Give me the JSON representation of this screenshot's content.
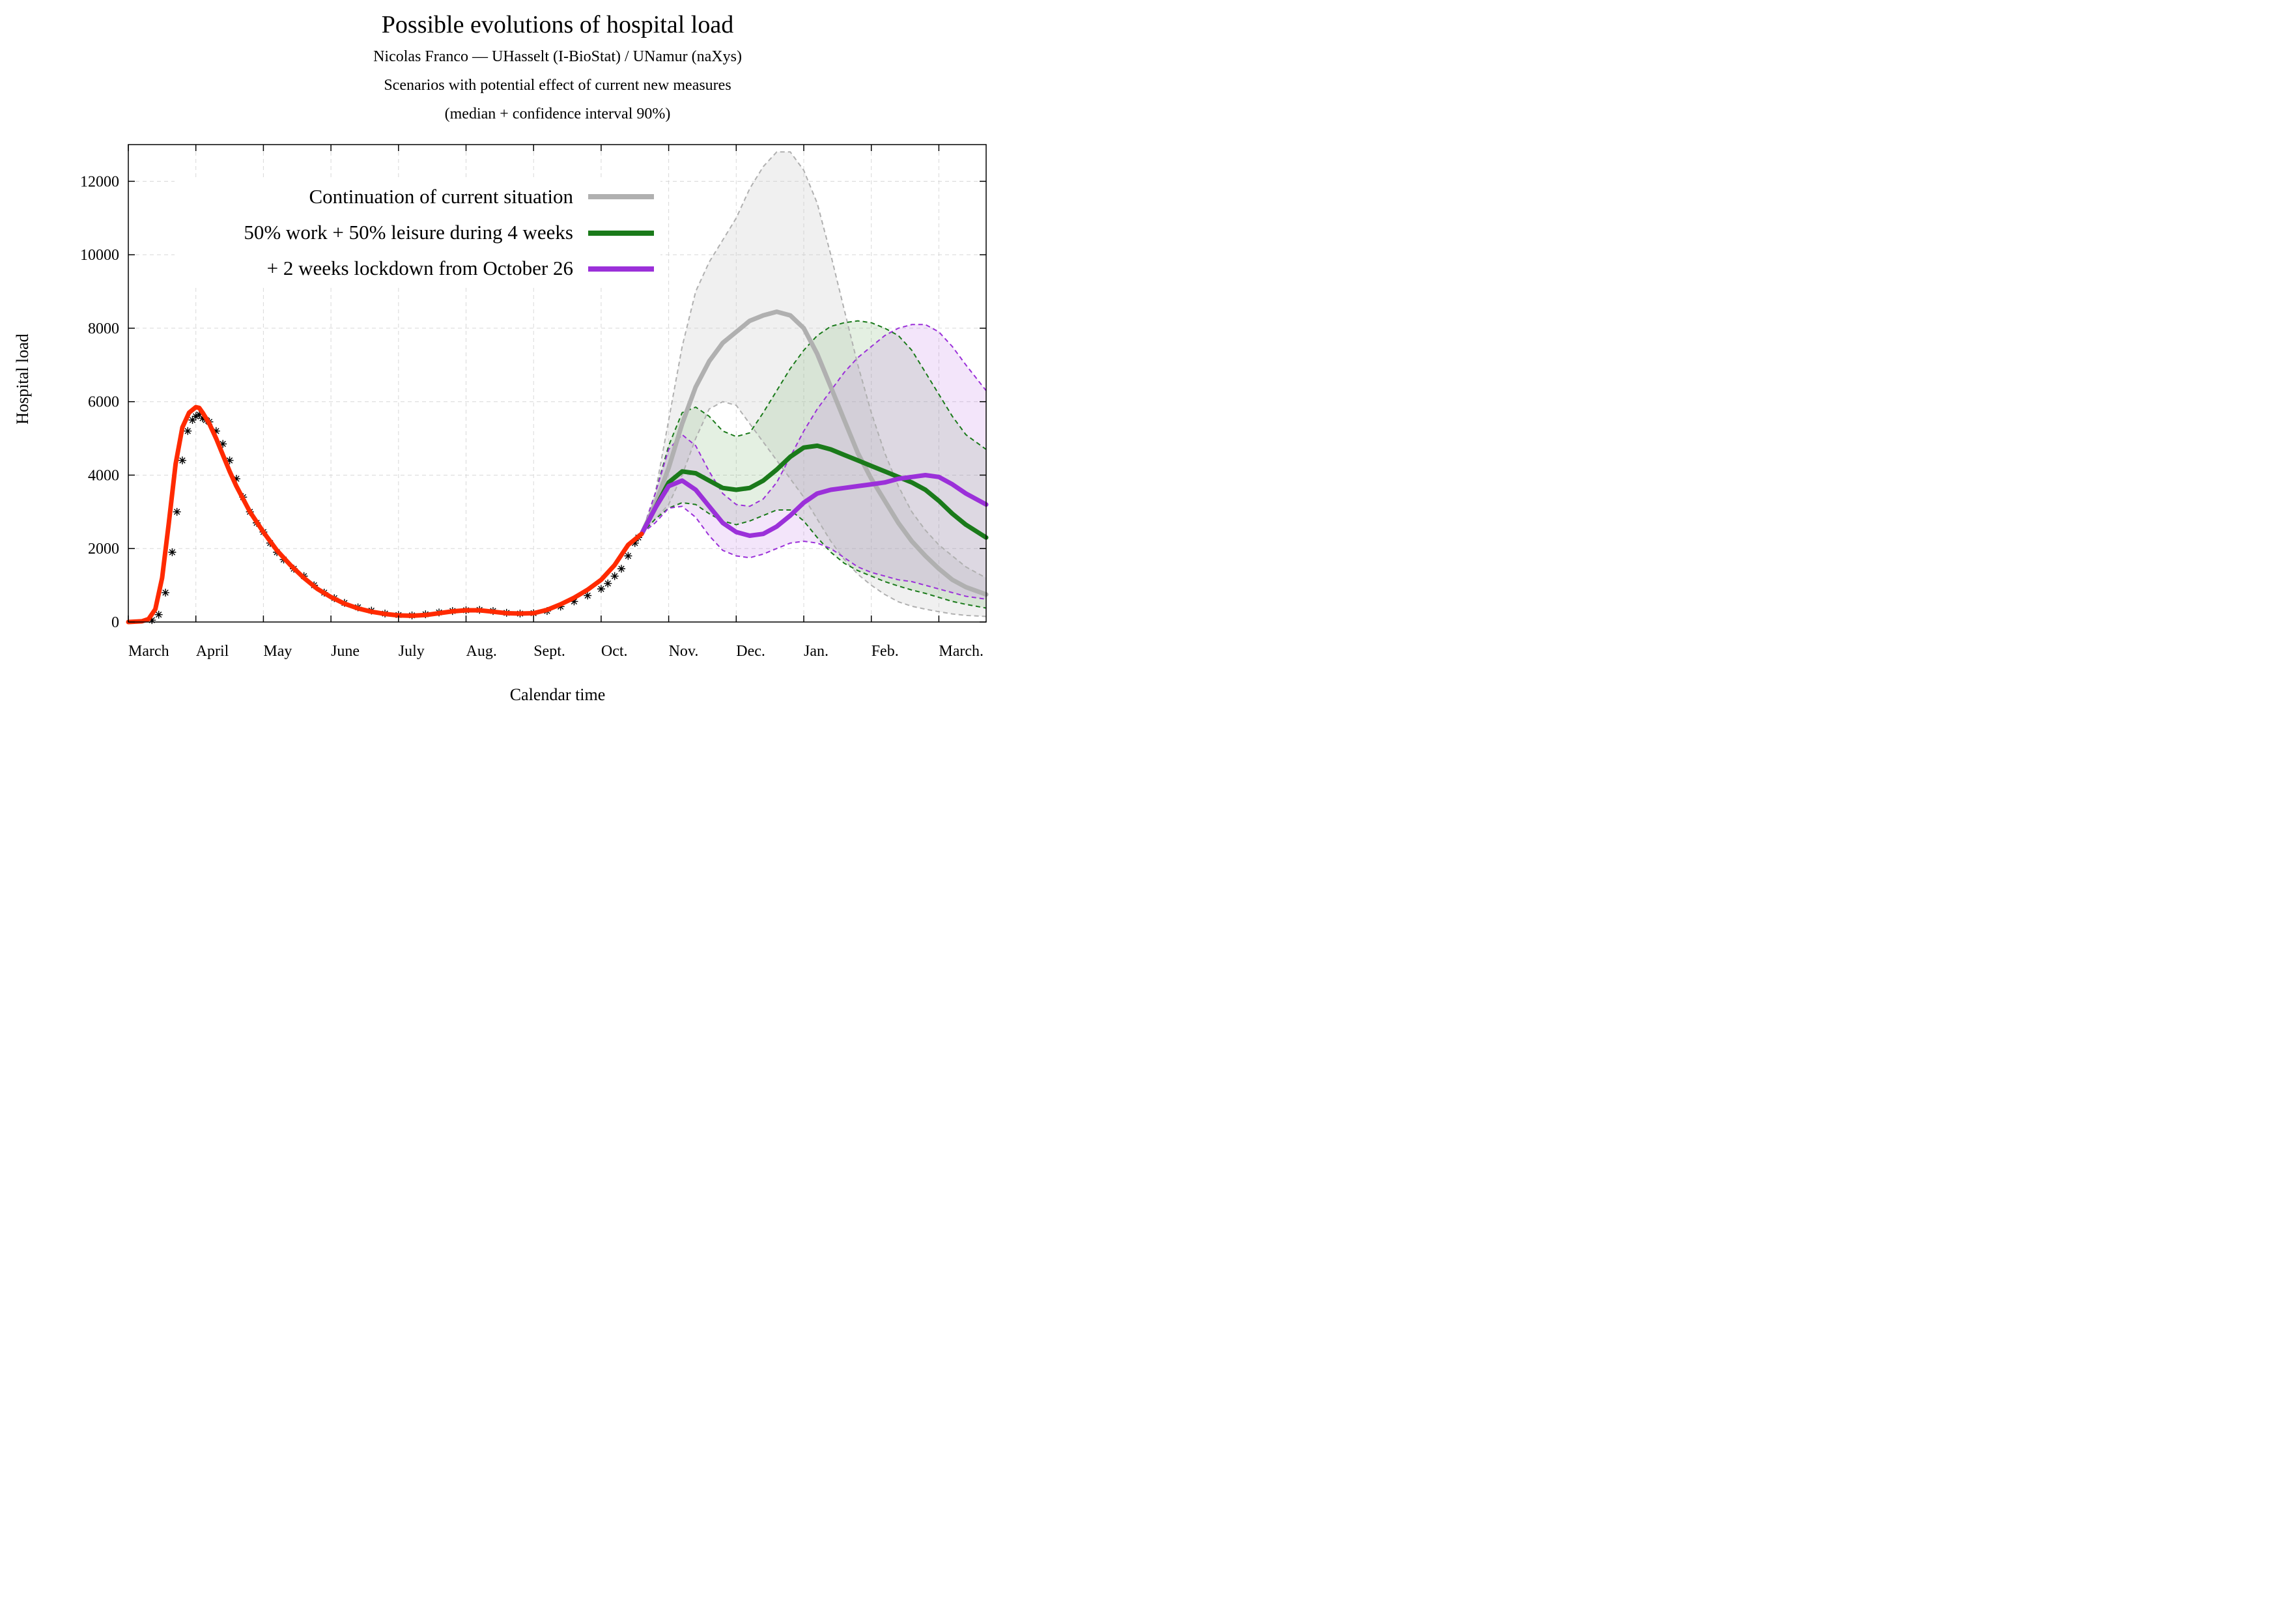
{
  "chart_data": {
    "type": "line",
    "title": "Possible evolutions of hospital load",
    "subtitle_lines": [
      "Nicolas Franco — UHasselt (I-BioStat) / UNamur (naXys)",
      "Scenarios with potential effect of current new measures",
      "(median + confidence interval 90%)"
    ],
    "xlabel": "Calendar time",
    "ylabel": "Hospital load",
    "x_unit": "months since March 1",
    "xlim": [
      0,
      12.7
    ],
    "ylim": [
      0,
      13000
    ],
    "x_ticks": [
      {
        "x": 0,
        "label": "March"
      },
      {
        "x": 1,
        "label": "April"
      },
      {
        "x": 2,
        "label": "May"
      },
      {
        "x": 3,
        "label": "June"
      },
      {
        "x": 4,
        "label": "July"
      },
      {
        "x": 5,
        "label": "Aug."
      },
      {
        "x": 6,
        "label": "Sept."
      },
      {
        "x": 7,
        "label": "Oct."
      },
      {
        "x": 8,
        "label": "Nov."
      },
      {
        "x": 9,
        "label": "Dec."
      },
      {
        "x": 10,
        "label": "Jan."
      },
      {
        "x": 11,
        "label": "Feb."
      },
      {
        "x": 12,
        "label": "March."
      }
    ],
    "y_ticks": [
      0,
      2000,
      4000,
      6000,
      8000,
      10000,
      12000
    ],
    "grid": true,
    "legend_placement": "top-left",
    "legend": [
      {
        "label": "Continuation of current situation",
        "color": "#b0b0b0"
      },
      {
        "label": "50% work + 50% leisure during 4 weeks",
        "color": "#1a7a1a"
      },
      {
        "label": "+ 2 weeks lockdown from October 26",
        "color": "#9b30d9"
      }
    ],
    "observed": {
      "color": "#000000",
      "marker": "asterisk",
      "x": [
        0.35,
        0.45,
        0.55,
        0.65,
        0.72,
        0.8,
        0.88,
        0.95,
        1.0,
        1.05,
        1.1,
        1.15,
        1.2,
        1.3,
        1.4,
        1.5,
        1.6,
        1.7,
        1.8,
        1.9,
        2.0,
        2.1,
        2.2,
        2.3,
        2.45,
        2.6,
        2.75,
        2.9,
        3.05,
        3.2,
        3.4,
        3.6,
        3.8,
        4.0,
        4.2,
        4.4,
        4.6,
        4.8,
        5.0,
        5.2,
        5.4,
        5.6,
        5.8,
        6.0,
        6.2,
        6.4,
        6.6,
        6.8,
        7.0,
        7.1,
        7.2,
        7.3,
        7.4,
        7.5,
        7.55
      ],
      "y": [
        50,
        200,
        800,
        1900,
        3000,
        4400,
        5200,
        5500,
        5600,
        5650,
        5550,
        5500,
        5450,
        5200,
        4850,
        4400,
        3900,
        3400,
        3000,
        2700,
        2450,
        2150,
        1900,
        1700,
        1450,
        1250,
        1000,
        800,
        650,
        520,
        400,
        310,
        230,
        190,
        180,
        210,
        260,
        300,
        320,
        330,
        300,
        250,
        230,
        240,
        300,
        420,
        560,
        720,
        900,
        1050,
        1250,
        1450,
        1800,
        2150,
        2300
      ]
    },
    "fit": {
      "color": "#ff2a00",
      "x": [
        0,
        0.2,
        0.3,
        0.4,
        0.5,
        0.6,
        0.7,
        0.8,
        0.9,
        1.0,
        1.05,
        1.1,
        1.2,
        1.3,
        1.4,
        1.5,
        1.6,
        1.8,
        2.0,
        2.2,
        2.4,
        2.6,
        2.8,
        3.0,
        3.2,
        3.4,
        3.6,
        3.8,
        4.0,
        4.2,
        4.4,
        4.6,
        4.8,
        5.0,
        5.2,
        5.4,
        5.6,
        5.8,
        6.0,
        6.2,
        6.4,
        6.6,
        6.8,
        7.0,
        7.2,
        7.4,
        7.6
      ],
      "y": [
        0,
        20,
        80,
        350,
        1200,
        2700,
        4300,
        5300,
        5700,
        5850,
        5830,
        5700,
        5400,
        5000,
        4550,
        4100,
        3700,
        3000,
        2450,
        1950,
        1550,
        1200,
        900,
        680,
        500,
        370,
        280,
        220,
        180,
        170,
        190,
        240,
        290,
        320,
        320,
        280,
        240,
        230,
        240,
        330,
        480,
        660,
        880,
        1150,
        1550,
        2100,
        2400
      ]
    },
    "series": [
      {
        "name": "Continuation of current situation",
        "color": "#b0b0b0",
        "x": [
          7.6,
          7.8,
          8.0,
          8.2,
          8.4,
          8.6,
          8.8,
          9.0,
          9.2,
          9.4,
          9.6,
          9.8,
          10.0,
          10.2,
          10.4,
          10.6,
          10.8,
          11.0,
          11.2,
          11.4,
          11.6,
          11.8,
          12.0,
          12.2,
          12.4,
          12.7
        ],
        "median": [
          2400,
          3200,
          4200,
          5400,
          6400,
          7100,
          7600,
          7900,
          8200,
          8350,
          8450,
          8350,
          8000,
          7300,
          6400,
          5500,
          4600,
          3900,
          3300,
          2700,
          2200,
          1800,
          1450,
          1150,
          950,
          750
        ],
        "lower": [
          2400,
          2800,
          3200,
          4000,
          5000,
          5800,
          6000,
          5900,
          5400,
          4900,
          4400,
          3900,
          3400,
          2800,
          2200,
          1700,
          1300,
          1000,
          750,
          550,
          430,
          350,
          280,
          220,
          180,
          150
        ],
        "upper": [
          2400,
          3500,
          5500,
          7500,
          9000,
          9800,
          10400,
          11000,
          11800,
          12400,
          12800,
          12800,
          12300,
          11400,
          10000,
          8500,
          7000,
          5700,
          4600,
          3700,
          3000,
          2500,
          2100,
          1800,
          1500,
          1200
        ]
      },
      {
        "name": "50% work + 50% leisure during 4 weeks",
        "color": "#1a7a1a",
        "x": [
          7.6,
          7.8,
          8.0,
          8.2,
          8.4,
          8.6,
          8.8,
          9.0,
          9.2,
          9.4,
          9.6,
          9.8,
          10.0,
          10.2,
          10.4,
          10.6,
          10.8,
          11.0,
          11.2,
          11.4,
          11.6,
          11.8,
          12.0,
          12.2,
          12.4,
          12.7
        ],
        "median": [
          2400,
          3100,
          3800,
          4100,
          4050,
          3850,
          3650,
          3600,
          3650,
          3850,
          4150,
          4500,
          4750,
          4800,
          4700,
          4550,
          4400,
          4250,
          4100,
          3950,
          3800,
          3600,
          3300,
          2950,
          2650,
          2300
        ],
        "lower": [
          2400,
          2800,
          3100,
          3250,
          3200,
          2950,
          2750,
          2650,
          2750,
          2900,
          3050,
          3050,
          2750,
          2300,
          1900,
          1600,
          1400,
          1250,
          1100,
          980,
          870,
          780,
          670,
          560,
          480,
          380
        ],
        "upper": [
          2400,
          3500,
          4800,
          5700,
          5850,
          5600,
          5200,
          5050,
          5150,
          5700,
          6300,
          6900,
          7400,
          7800,
          8050,
          8150,
          8200,
          8150,
          8000,
          7800,
          7400,
          6800,
          6200,
          5600,
          5100,
          4700
        ]
      },
      {
        "name": "+ 2 weeks lockdown from October 26",
        "color": "#9b30d9",
        "x": [
          7.6,
          7.8,
          8.0,
          8.2,
          8.4,
          8.6,
          8.8,
          9.0,
          9.2,
          9.4,
          9.6,
          9.8,
          10.0,
          10.2,
          10.4,
          10.6,
          10.8,
          11.0,
          11.2,
          11.4,
          11.6,
          11.8,
          12.0,
          12.2,
          12.4,
          12.7
        ],
        "median": [
          2400,
          3100,
          3700,
          3850,
          3600,
          3150,
          2700,
          2450,
          2350,
          2400,
          2600,
          2900,
          3250,
          3500,
          3600,
          3650,
          3700,
          3750,
          3800,
          3900,
          3950,
          4000,
          3950,
          3750,
          3500,
          3200
        ],
        "lower": [
          2400,
          2700,
          3100,
          3150,
          2850,
          2350,
          1950,
          1800,
          1750,
          1850,
          2000,
          2150,
          2200,
          2150,
          2000,
          1750,
          1500,
          1350,
          1250,
          1150,
          1100,
          1000,
          900,
          800,
          700,
          620
        ],
        "upper": [
          2400,
          3500,
          4700,
          5100,
          4800,
          4100,
          3500,
          3200,
          3150,
          3350,
          3800,
          4500,
          5200,
          5800,
          6300,
          6800,
          7200,
          7500,
          7800,
          8000,
          8100,
          8100,
          7900,
          7500,
          7000,
          6300
        ]
      }
    ]
  }
}
